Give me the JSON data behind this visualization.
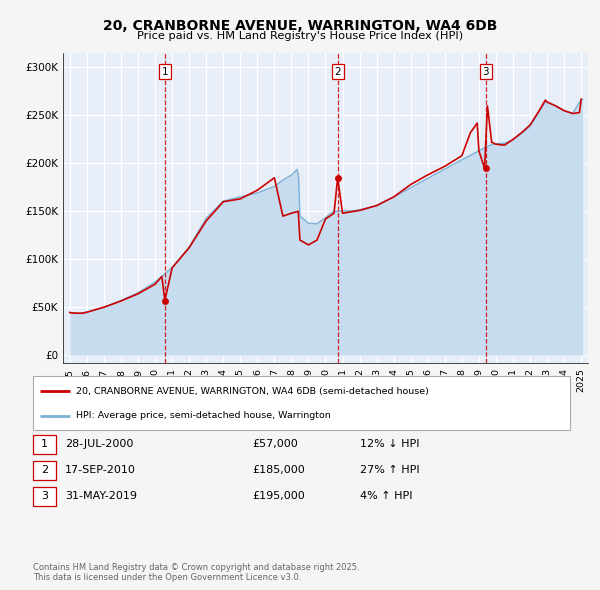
{
  "title": "20, CRANBORNE AVENUE, WARRINGTON, WA4 6DB",
  "subtitle": "Price paid vs. HM Land Registry's House Price Index (HPI)",
  "bg_color": "#f5f5f5",
  "plot_bg_color": "#e8eef8",
  "grid_color": "#ffffff",
  "line1_color": "#cc0000",
  "line2_color": "#7ab0d4",
  "line2_fill_color": "#c8dcf0",
  "marker_color": "#cc0000",
  "dashed_line_color": "#cc0000",
  "ytick_labels": [
    "£0",
    "£50K",
    "£100K",
    "£150K",
    "£200K",
    "£250K",
    "£300K"
  ],
  "yticks": [
    0,
    50000,
    100000,
    150000,
    200000,
    250000,
    300000
  ],
  "ylim": [
    -8000,
    315000
  ],
  "xlim_start": 1994.6,
  "xlim_end": 2025.4,
  "xtick_years": [
    1995,
    1996,
    1997,
    1998,
    1999,
    2000,
    2001,
    2002,
    2003,
    2004,
    2005,
    2006,
    2007,
    2008,
    2009,
    2010,
    2011,
    2012,
    2013,
    2014,
    2015,
    2016,
    2017,
    2018,
    2019,
    2020,
    2021,
    2022,
    2023,
    2024,
    2025
  ],
  "sale_dates": [
    2000.576,
    2010.714,
    2019.414
  ],
  "sale_prices": [
    57000,
    185000,
    195000
  ],
  "sale_labels": [
    "1",
    "2",
    "3"
  ],
  "legend_line1": "20, CRANBORNE AVENUE, WARRINGTON, WA4 6DB (semi-detached house)",
  "legend_line2": "HPI: Average price, semi-detached house, Warrington",
  "table_rows": [
    [
      "1",
      "28-JUL-2000",
      "£57,000",
      "12% ↓ HPI"
    ],
    [
      "2",
      "17-SEP-2010",
      "£185,000",
      "27% ↑ HPI"
    ],
    [
      "3",
      "31-MAY-2019",
      "£195,000",
      "4% ↑ HPI"
    ]
  ],
  "footer": "Contains HM Land Registry data © Crown copyright and database right 2025.\nThis data is licensed under the Open Government Licence v3.0."
}
